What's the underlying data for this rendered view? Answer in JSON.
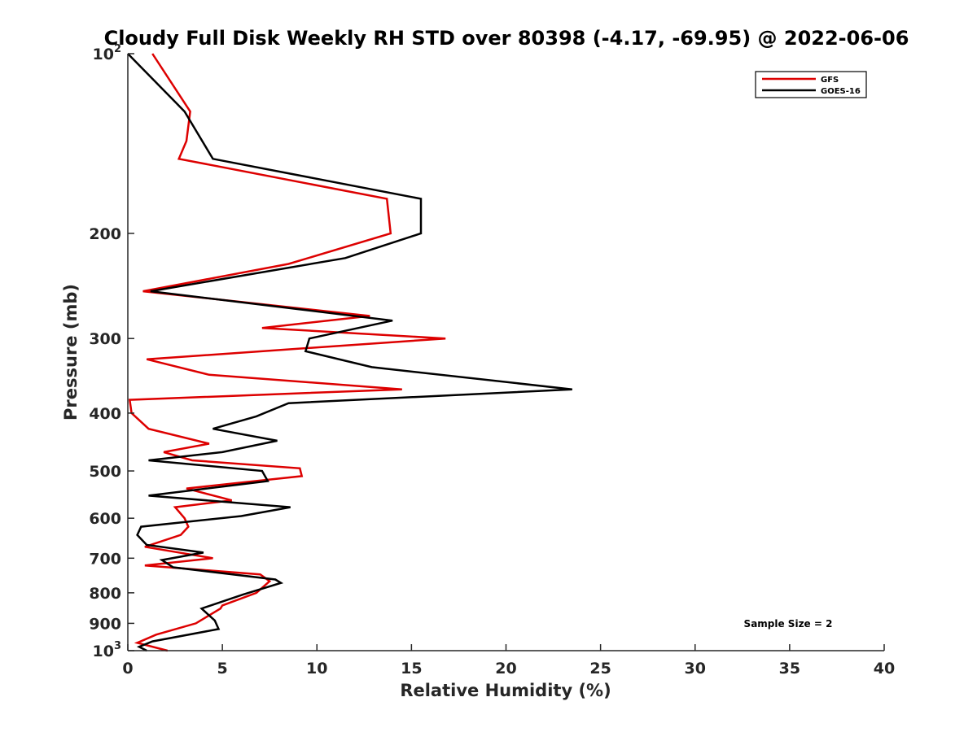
{
  "chart_data": {
    "type": "line",
    "title": "Cloudy Full Disk Weekly RH STD over 80398 (-4.17, -69.95) @ 2022-06-06",
    "xlabel": "Relative Humidity (%)",
    "ylabel": "Pressure (mb)",
    "xlim": [
      0,
      40
    ],
    "ylim": [
      100,
      1000
    ],
    "y_scale": "log",
    "y_reversed": true,
    "xticks": [
      0,
      5,
      10,
      15,
      20,
      25,
      30,
      35,
      40
    ],
    "yticks": [
      {
        "value": 100,
        "base": "10",
        "exp": "2"
      },
      {
        "value": 200,
        "label": "200"
      },
      {
        "value": 300,
        "label": "300"
      },
      {
        "value": 400,
        "label": "400"
      },
      {
        "value": 500,
        "label": "500"
      },
      {
        "value": 600,
        "label": "600"
      },
      {
        "value": 700,
        "label": "700"
      },
      {
        "value": 800,
        "label": "800"
      },
      {
        "value": 900,
        "label": "900"
      },
      {
        "value": 1000,
        "base": "10",
        "exp": "3"
      }
    ],
    "legend_position": "top-right",
    "annotation": "Sample Size = 2",
    "series": [
      {
        "name": "GFS",
        "color": "#dd0000",
        "points": [
          [
            1.3,
            100
          ],
          [
            3.3,
            125
          ],
          [
            3.1,
            140
          ],
          [
            2.7,
            150
          ],
          [
            13.7,
            175
          ],
          [
            13.9,
            200
          ],
          [
            8.5,
            225
          ],
          [
            0.8,
            250
          ],
          [
            12.8,
            275
          ],
          [
            7.1,
            288
          ],
          [
            16.8,
            300
          ],
          [
            1.0,
            325
          ],
          [
            4.3,
            345
          ],
          [
            14.5,
            365
          ],
          [
            0.1,
            380
          ],
          [
            0.2,
            400
          ],
          [
            1.1,
            425
          ],
          [
            4.3,
            450
          ],
          [
            1.9,
            465
          ],
          [
            3.4,
            480
          ],
          [
            9.1,
            495
          ],
          [
            9.2,
            510
          ],
          [
            3.1,
            535
          ],
          [
            5.5,
            560
          ],
          [
            2.5,
            575
          ],
          [
            3.0,
            600
          ],
          [
            3.2,
            620
          ],
          [
            2.8,
            640
          ],
          [
            0.9,
            670
          ],
          [
            4.5,
            700
          ],
          [
            0.9,
            720
          ],
          [
            7.0,
            745
          ],
          [
            7.5,
            765
          ],
          [
            6.8,
            800
          ],
          [
            5.0,
            840
          ],
          [
            4.9,
            850
          ],
          [
            3.6,
            900
          ],
          [
            1.5,
            940
          ],
          [
            0.5,
            970
          ],
          [
            2.1,
            1000
          ]
        ]
      },
      {
        "name": "GOES-16",
        "color": "#000000",
        "points": [
          [
            0.0,
            100
          ],
          [
            3.0,
            125
          ],
          [
            4.5,
            150
          ],
          [
            15.5,
            175
          ],
          [
            15.5,
            200
          ],
          [
            11.5,
            220
          ],
          [
            1.2,
            250
          ],
          [
            14.0,
            280
          ],
          [
            9.6,
            300
          ],
          [
            9.4,
            315
          ],
          [
            12.9,
            335
          ],
          [
            23.5,
            365
          ],
          [
            8.5,
            385
          ],
          [
            6.8,
            405
          ],
          [
            4.5,
            425
          ],
          [
            7.9,
            445
          ],
          [
            5.0,
            465
          ],
          [
            1.1,
            480
          ],
          [
            7.1,
            500
          ],
          [
            7.4,
            520
          ],
          [
            1.1,
            550
          ],
          [
            8.6,
            575
          ],
          [
            6.0,
            595
          ],
          [
            0.7,
            620
          ],
          [
            0.5,
            640
          ],
          [
            1.0,
            665
          ],
          [
            4.0,
            685
          ],
          [
            1.8,
            705
          ],
          [
            2.4,
            725
          ],
          [
            7.8,
            760
          ],
          [
            8.1,
            770
          ],
          [
            6.1,
            805
          ],
          [
            3.9,
            850
          ],
          [
            4.6,
            890
          ],
          [
            4.8,
            920
          ],
          [
            1.3,
            965
          ],
          [
            0.6,
            985
          ],
          [
            1.0,
            1000
          ]
        ]
      }
    ]
  }
}
